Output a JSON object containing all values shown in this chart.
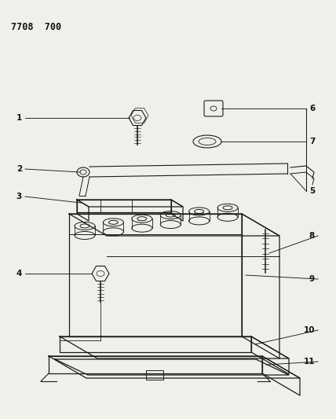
{
  "title": "7708  700",
  "bg_color": "#f0f0eb",
  "line_color": "#1a1a1a",
  "label_color": "#111111",
  "figsize": [
    4.28,
    5.33
  ],
  "dpi": 100
}
